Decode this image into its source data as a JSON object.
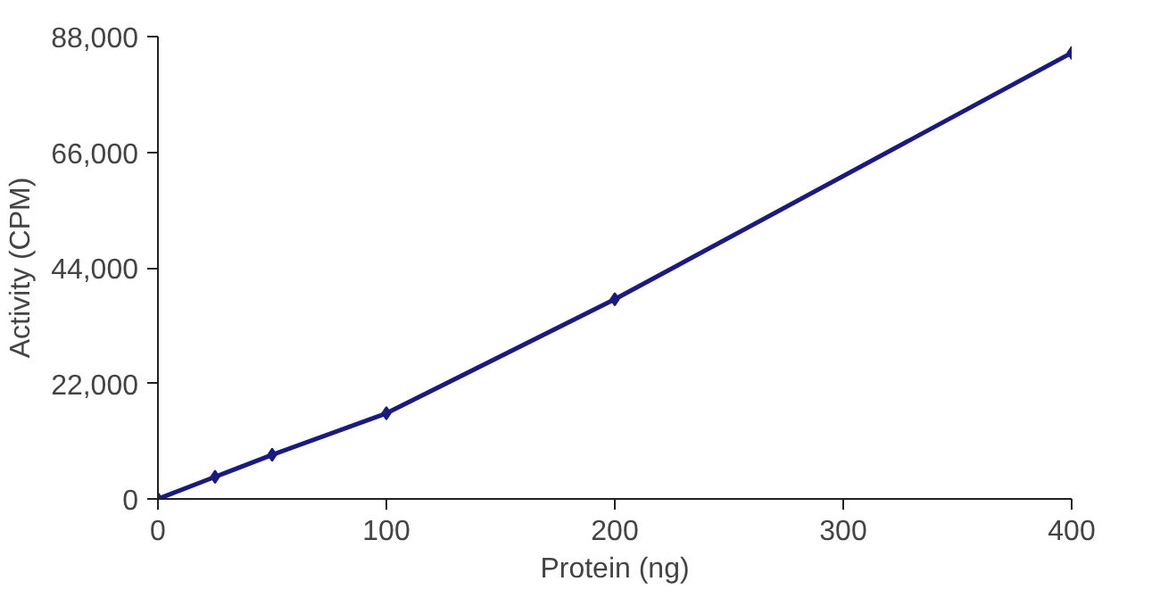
{
  "chart_data": {
    "type": "line",
    "xlabel": "Protein (ng)",
    "ylabel": "Activity (CPM)",
    "x": [
      0,
      25,
      50,
      100,
      200,
      400
    ],
    "series": [
      {
        "color": "#1a1a80",
        "values": [
          0,
          4200,
          8400,
          16300,
          38000,
          84900
        ]
      }
    ],
    "xlim": [
      0,
      400
    ],
    "xticks": [
      0,
      100,
      200,
      300,
      400
    ],
    "ylim": [
      0,
      88000
    ],
    "yticks": [
      {
        "value": 0,
        "label": "0"
      },
      {
        "value": 22000,
        "label": "22,000"
      },
      {
        "value": 44000,
        "label": "44,000"
      },
      {
        "value": 66000,
        "label": "66,000"
      },
      {
        "value": 88000,
        "label": "88,000"
      }
    ],
    "marker": "diamond",
    "line_style": "solid",
    "grid": false
  }
}
